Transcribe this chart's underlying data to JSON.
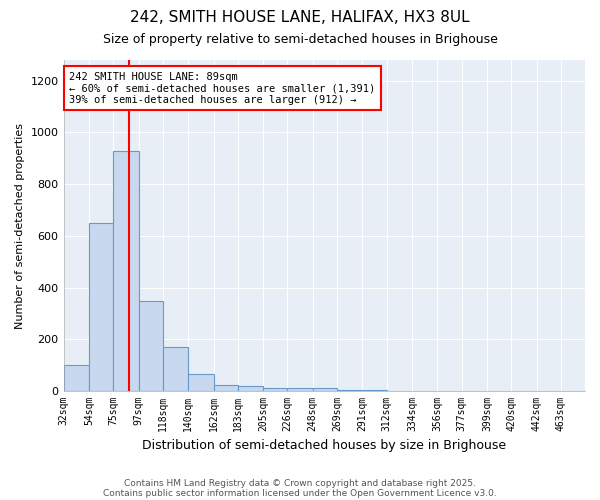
{
  "title1": "242, SMITH HOUSE LANE, HALIFAX, HX3 8UL",
  "title2": "Size of property relative to semi-detached houses in Brighouse",
  "xlabel": "Distribution of semi-detached houses by size in Brighouse",
  "ylabel": "Number of semi-detached properties",
  "bins": [
    32,
    54,
    75,
    97,
    118,
    140,
    162,
    183,
    205,
    226,
    248,
    269,
    291,
    312,
    334,
    356,
    377,
    399,
    420,
    442,
    463,
    484
  ],
  "counts": [
    100,
    650,
    930,
    350,
    170,
    65,
    25,
    18,
    12,
    12,
    10,
    3,
    3,
    1,
    1,
    0,
    0,
    0,
    0,
    0,
    0
  ],
  "bar_fill_color": "#c8d8ee",
  "bar_edge_color": "#6699cc",
  "vline_x": 89,
  "vline_color": "red",
  "annotation_text": "242 SMITH HOUSE LANE: 89sqm\n← 60% of semi-detached houses are smaller (1,391)\n39% of semi-detached houses are larger (912) →",
  "annotation_box_facecolor": "white",
  "annotation_box_edgecolor": "red",
  "ylim": [
    0,
    1280
  ],
  "yticks": [
    0,
    200,
    400,
    600,
    800,
    1000,
    1200
  ],
  "plot_bg_color": "#e8eef5",
  "fig_bg_color": "#ffffff",
  "grid_color": "#ffffff",
  "tick_labels": [
    "32sqm",
    "54sqm",
    "75sqm",
    "97sqm",
    "118sqm",
    "140sqm",
    "162sqm",
    "183sqm",
    "205sqm",
    "226sqm",
    "248sqm",
    "269sqm",
    "291sqm",
    "312sqm",
    "334sqm",
    "356sqm",
    "377sqm",
    "399sqm",
    "420sqm",
    "442sqm",
    "463sqm"
  ],
  "footer1": "Contains HM Land Registry data © Crown copyright and database right 2025.",
  "footer2": "Contains public sector information licensed under the Open Government Licence v3.0."
}
